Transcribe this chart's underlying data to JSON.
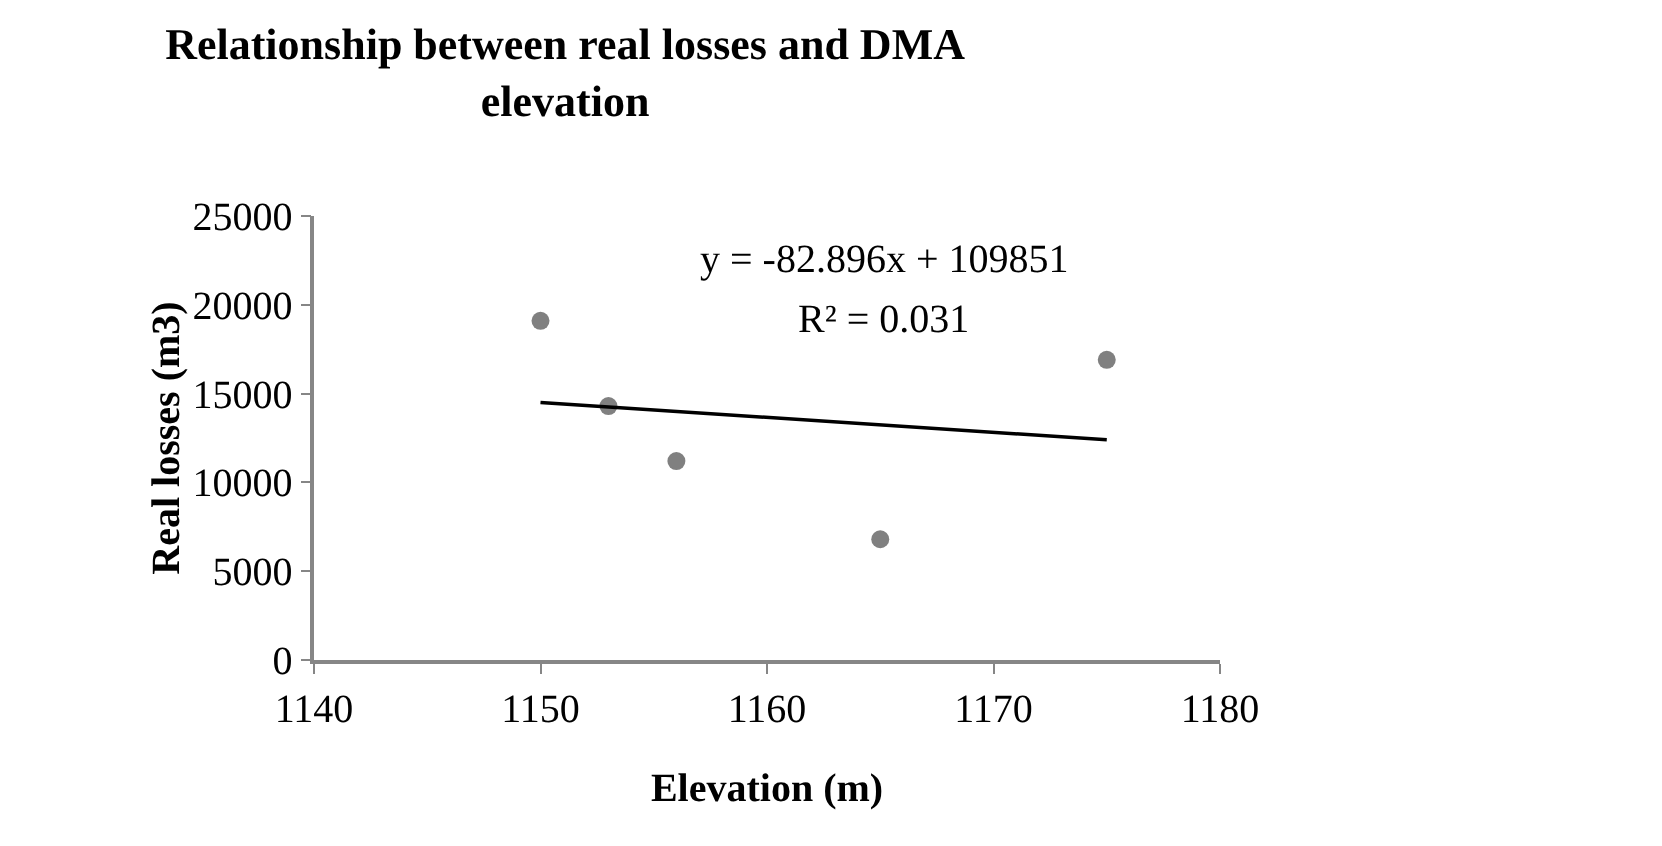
{
  "chart_data": {
    "type": "scatter",
    "title": "Relationship between real losses and DMA elevation",
    "xlabel": "Elevation (m)",
    "ylabel": "Real losses (m3)",
    "series": [
      {
        "color": "#808080",
        "x": [
          1150,
          1153,
          1156,
          1165,
          1175
        ],
        "values": [
          19100,
          14300,
          11200,
          6800,
          16900
        ]
      },
      {
        "type": "line",
        "color": "#000000",
        "marker": "none",
        "x": [
          1150,
          1175
        ],
        "values": [
          14500,
          12400
        ]
      }
    ],
    "xlim": [
      1140,
      1180
    ],
    "xticks": [
      1140,
      1150,
      1160,
      1170,
      1180
    ],
    "ylim": [
      0,
      25000
    ],
    "yticks": [
      0,
      5000,
      10000,
      15000,
      20000,
      25000
    ],
    "grid": false,
    "marker": "circle",
    "annotations": [
      "y = -82.896x + 109851",
      "R² = 0.031"
    ]
  }
}
